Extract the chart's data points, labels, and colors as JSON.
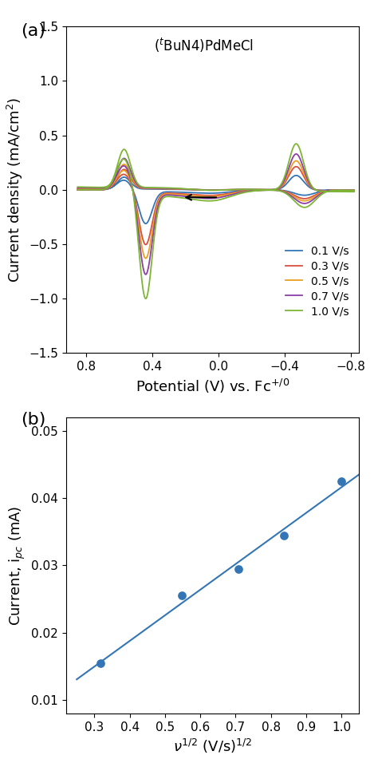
{
  "panel_a": {
    "title": "($^t$BuN4)PdMeCl",
    "xlabel": "Potential (V) vs. Fc$^{+/0}$",
    "ylabel": "Current density (mA/cm$^2$)",
    "xlim": [
      0.92,
      -0.85
    ],
    "ylim": [
      -1.5,
      1.5
    ],
    "xticks": [
      0.8,
      0.4,
      0.0,
      -0.4,
      -0.8
    ],
    "yticks": [
      -1.5,
      -1.0,
      -0.5,
      0.0,
      0.5,
      1.0,
      1.5
    ],
    "scan_rates": [
      "0.1 V/s",
      "0.3 V/s",
      "0.5 V/s",
      "0.7 V/s",
      "1.0 V/s"
    ],
    "colors": [
      "#3476b5",
      "#d94f3d",
      "#e8a020",
      "#8b3fa8",
      "#7db535"
    ],
    "scale_factors": [
      0.42,
      0.68,
      0.85,
      1.05,
      1.35
    ]
  },
  "panel_b": {
    "xlabel": "$\\nu^{1/2}$ (V/s)$^{1/2}$",
    "ylabel": "Current, i$_{pc}$ (mA)",
    "xlim": [
      1.05,
      0.22
    ],
    "ylim": [
      0.052,
      0.008
    ],
    "xticks": [
      1.0,
      0.9,
      0.8,
      0.7,
      0.6,
      0.5,
      0.4,
      0.3
    ],
    "yticks": [
      0.01,
      0.02,
      0.03,
      0.04,
      0.05
    ],
    "scatter_x": [
      1.0,
      0.8367,
      0.7071,
      0.5477,
      0.3162
    ],
    "scatter_y": [
      0.0425,
      0.0345,
      0.0295,
      0.0255,
      0.0155
    ],
    "color": "#3476b5"
  },
  "label_fontsize": 13,
  "tick_fontsize": 11,
  "panel_label_fontsize": 16
}
